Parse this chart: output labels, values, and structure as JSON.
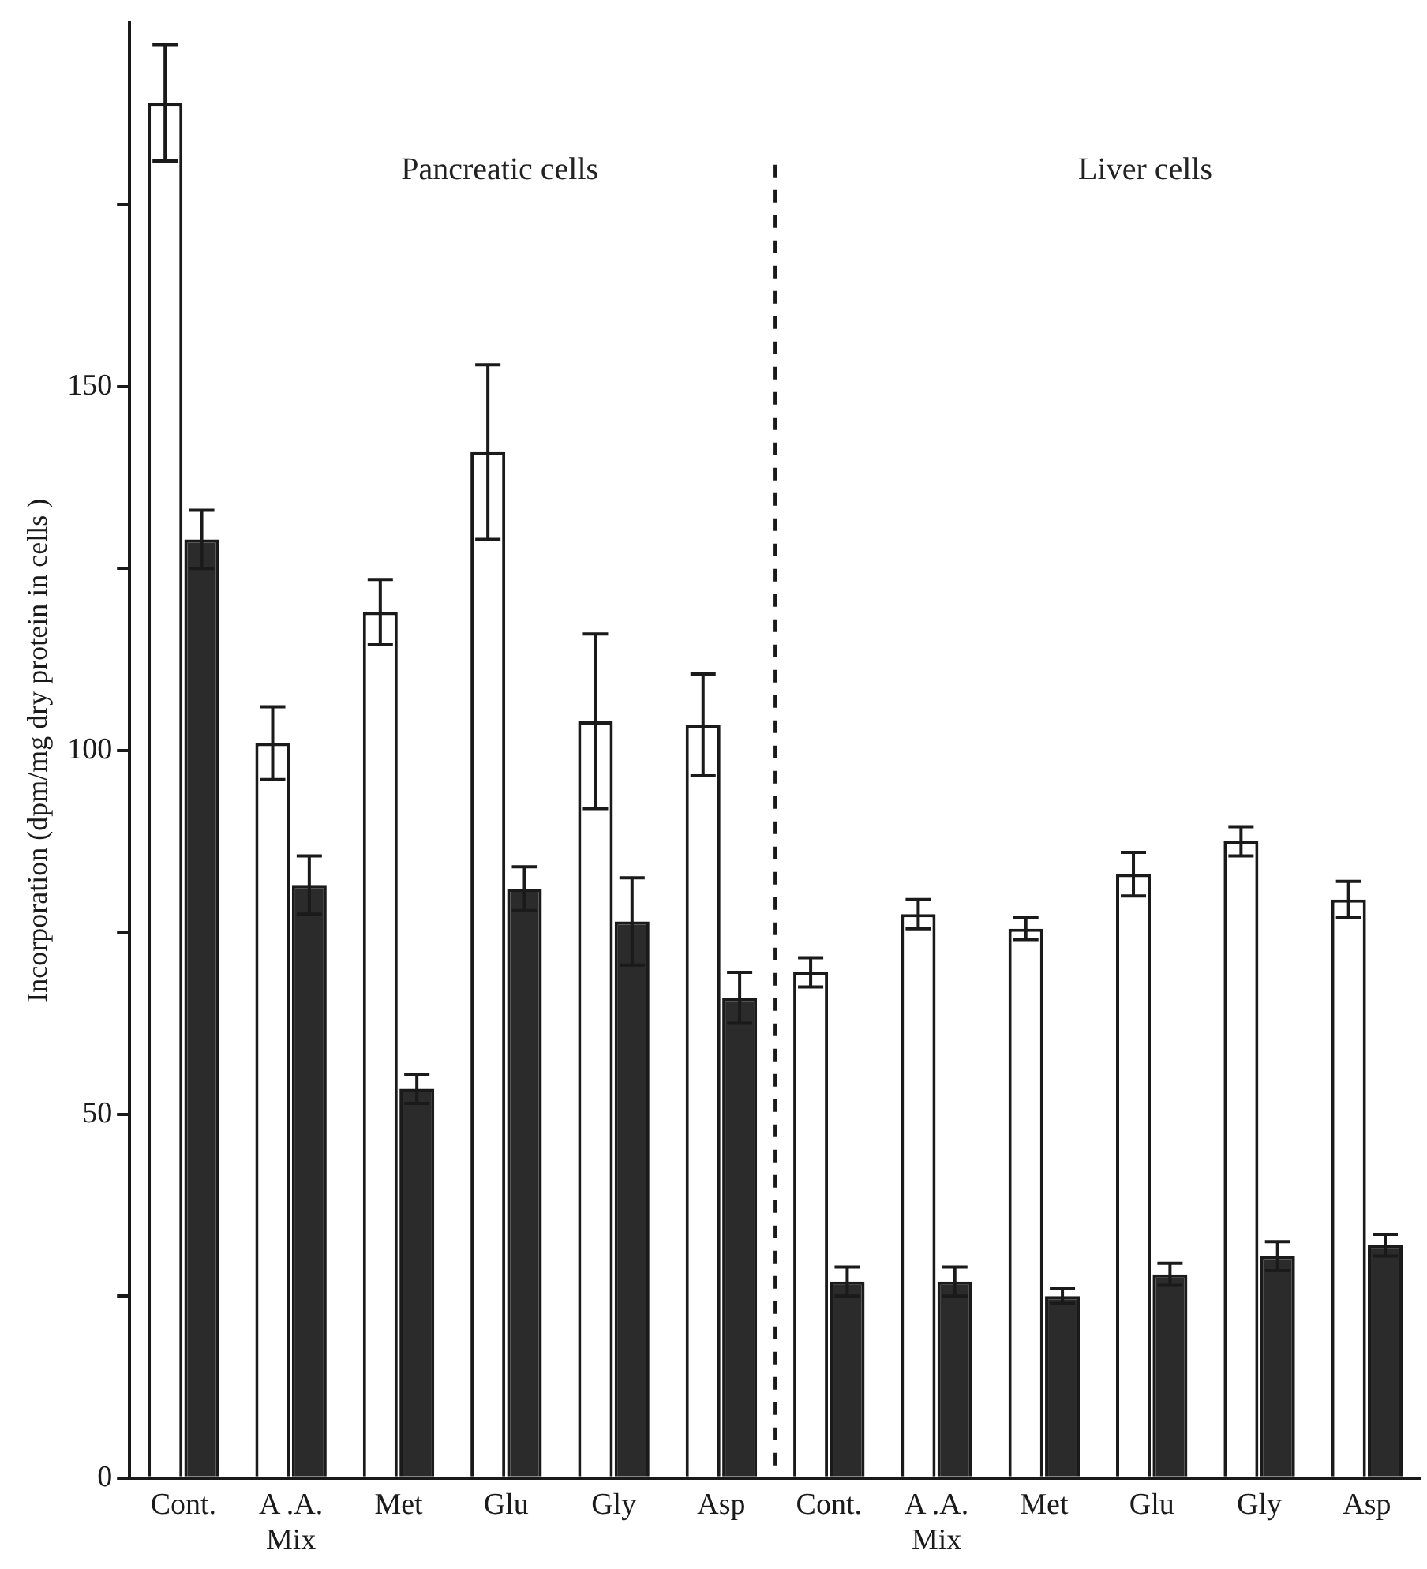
{
  "chart_data": {
    "type": "bar",
    "ylabel": "Incorporation (dpm/mg dry protein in cells )",
    "categories": [
      "Cont.",
      "A .A.\nMix",
      "Met",
      "Glu",
      "Gly",
      "Asp",
      "Cont.",
      "A .A.\nMix",
      "Met",
      "Glu",
      "Gly",
      "Asp"
    ],
    "series": [
      {
        "color": "#ffffff",
        "values": [
          189,
          101,
          119,
          141,
          104,
          103.5,
          69.5,
          77.5,
          75.5,
          83,
          87.5,
          79.5
        ],
        "errors": [
          8,
          5,
          4.5,
          12,
          12,
          7,
          2,
          2,
          1.5,
          3,
          2,
          2.5
        ]
      },
      {
        "color": "#2b2b2b",
        "values": [
          129,
          81.5,
          53.5,
          81,
          76.5,
          66,
          27,
          27,
          25,
          28,
          30.5,
          32
        ],
        "errors": [
          4,
          4,
          2,
          3,
          6,
          3.5,
          2,
          2,
          1,
          1.5,
          2,
          1.5
        ]
      }
    ],
    "ylim": [
      0,
      200
    ],
    "yticks": [
      0,
      {
        "value": 25,
        "label": null
      },
      50,
      {
        "value": 75,
        "label": null
      },
      100,
      {
        "value": 125,
        "label": null
      },
      150,
      {
        "value": 175,
        "label": null
      }
    ],
    "annotations": [
      "Pancreatic cells",
      "Liver cells"
    ],
    "grid": false,
    "legend": false
  }
}
